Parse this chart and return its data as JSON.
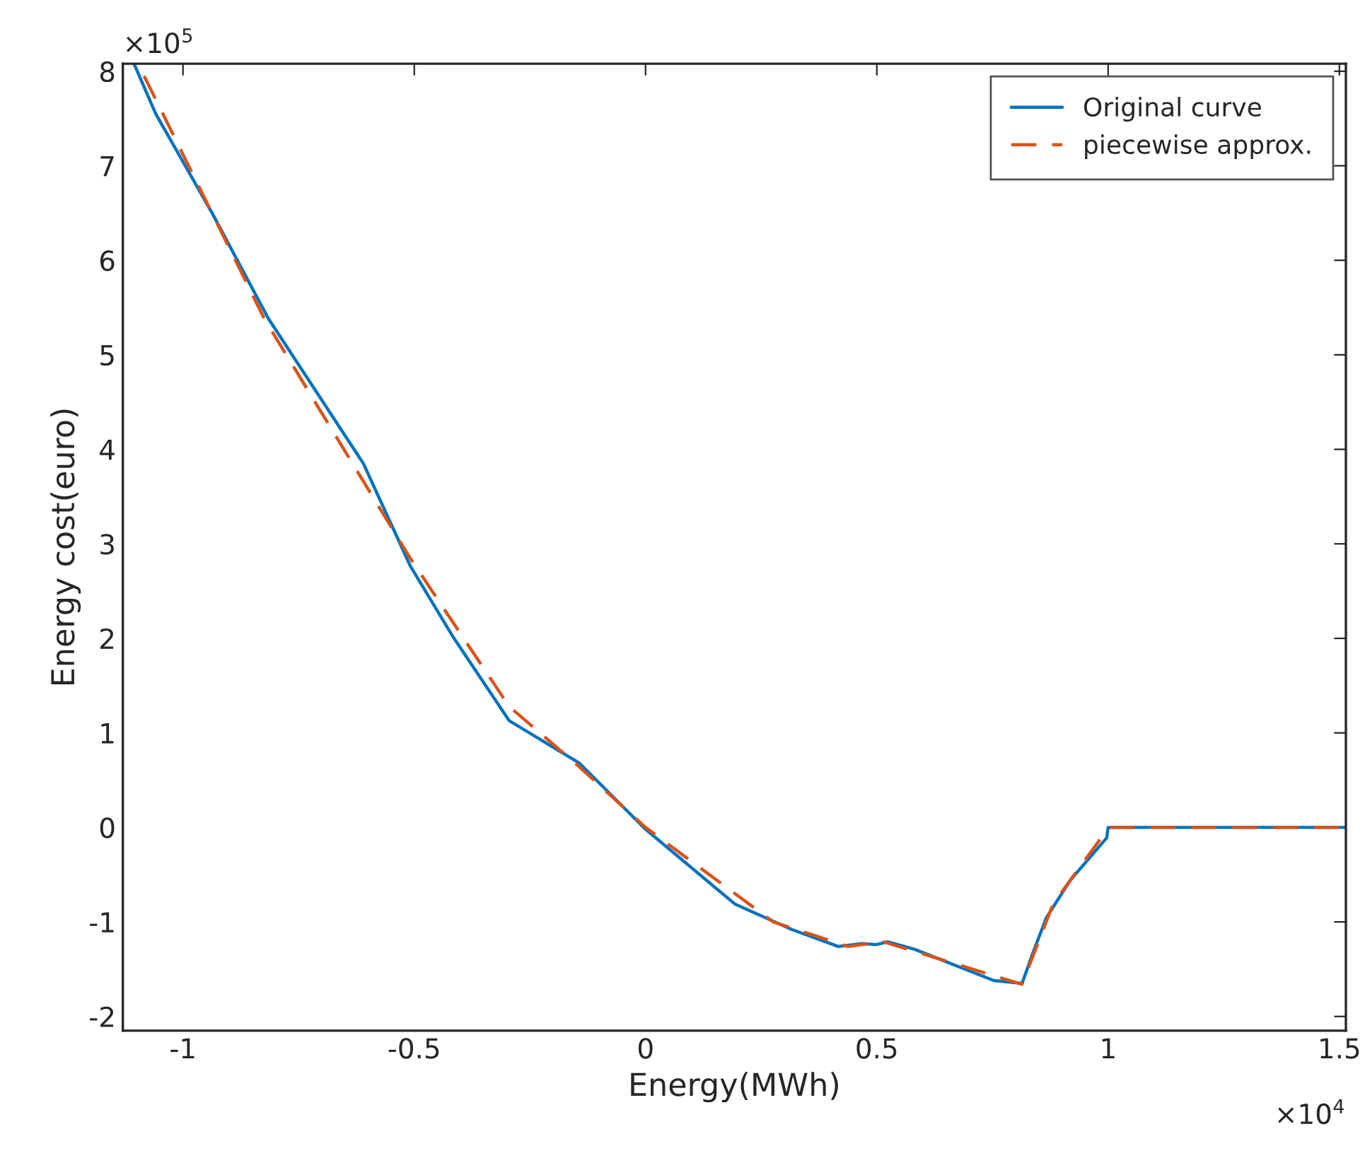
{
  "chart_data": {
    "type": "line",
    "xlabel": "Energy(MWh)",
    "ylabel": "Energy cost(euro)",
    "annotations": [
      "×10$^{5}$",
      "×10$^{4}$"
    ],
    "xlim": [
      -1.13,
      1.514
    ],
    "ylim": [
      -2.15,
      8.08
    ],
    "xticks": [
      -1,
      -0.5,
      0,
      0.5,
      1,
      1.5
    ],
    "yticks": [
      -2,
      -1,
      0,
      1,
      2,
      3,
      4,
      5,
      6,
      7,
      8
    ],
    "grid": false,
    "legend": "top right",
    "series": [
      {
        "name": "Original curve",
        "color": "#0072bd",
        "line_style": "solid",
        "x": [
          -1.105,
          -1.059,
          -0.937,
          -0.815,
          -0.61,
          -0.509,
          -0.418,
          -0.295,
          -0.143,
          0,
          0.193,
          0.316,
          0.417,
          0.469,
          0.499,
          0.523,
          0.582,
          0.753,
          0.814,
          0.835,
          0.866,
          0.918,
          0.997,
          1.0,
          1.513
        ],
        "values": [
          8.07,
          7.55,
          6.5,
          5.38,
          3.85,
          2.77,
          2.03,
          1.13,
          0.68,
          -0.02,
          -0.81,
          -1.08,
          -1.26,
          -1.23,
          -1.24,
          -1.21,
          -1.29,
          -1.62,
          -1.65,
          -1.36,
          -0.96,
          -0.56,
          -0.11,
          0,
          0
        ]
      },
      {
        "name": "piecewise approx.",
        "color": "#d95319",
        "line_style": "dashed",
        "x": [
          -1.084,
          -0.824,
          -0.509,
          -0.295,
          -0.152,
          0,
          0.276,
          0.438,
          0.514,
          0.814,
          0.881,
          0.997,
          1.003,
          1.513
        ],
        "values": [
          7.95,
          5.38,
          2.85,
          1.28,
          0.68,
          0,
          -1.0,
          -1.26,
          -1.21,
          -1.66,
          -0.81,
          -0.03,
          0,
          0
        ]
      }
    ]
  }
}
